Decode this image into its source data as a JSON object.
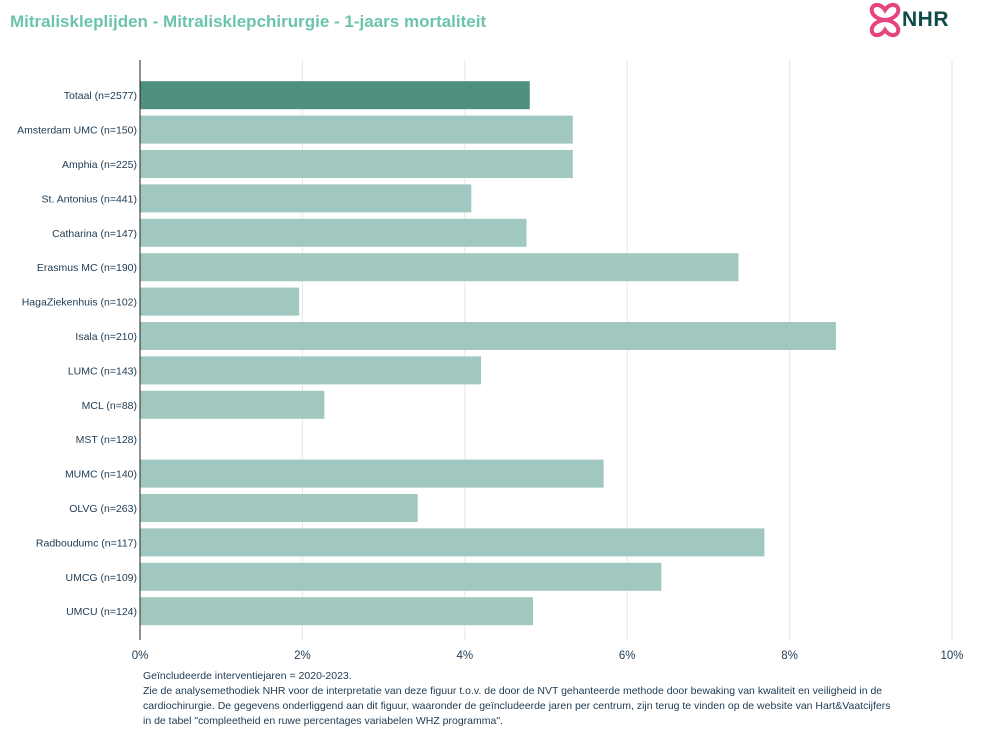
{
  "title": "Mitraliskleplijden - Mitralisklepchirurgie - 1-jaars mortaliteit",
  "logo": {
    "text": "NHR",
    "icon": "nhr-hearts-icon"
  },
  "chart_data": {
    "type": "bar",
    "orientation": "horizontal",
    "categories": [
      "Totaal (n=2577)",
      "Amsterdam UMC (n=150)",
      "Amphia (n=225)",
      "St. Antonius (n=441)",
      "Catharina (n=147)",
      "Erasmus MC (n=190)",
      "HagaZiekenhuis (n=102)",
      "Isala (n=210)",
      "LUMC (n=143)",
      "MCL (n=88)",
      "MST (n=128)",
      "MUMC (n=140)",
      "OLVG (n=263)",
      "Radboudumc (n=117)",
      "UMCG (n=109)",
      "UMCU (n=124)"
    ],
    "values": [
      4.8,
      5.33,
      5.33,
      4.08,
      4.76,
      7.37,
      1.96,
      8.57,
      4.2,
      2.27,
      0.0,
      5.71,
      3.42,
      7.69,
      6.42,
      4.84
    ],
    "highlight_index": 0,
    "xlim": [
      0,
      10
    ],
    "xticks": [
      "0%",
      "2%",
      "4%",
      "6%",
      "8%",
      "10%"
    ],
    "xtick_values": [
      0,
      2,
      4,
      6,
      8,
      10
    ],
    "grid": true,
    "colors": {
      "highlight": "#4e8f7f",
      "bar": "#a0c8c0",
      "grid": "#e6e6e6",
      "axis": "#222222",
      "label": "#1d3a52"
    }
  },
  "footnote": [
    "Geïncludeerde interventiejaren = 2020-2023.",
    "Zie de analysemethodiek NHR voor de interpretatie van deze figuur t.o.v. de door de NVT gehanteerde methode door bewaking van kwaliteit en veiligheid in de",
    "cardiochirurgie. De gegevens onderliggend aan dit figuur, waaronder de geïncludeerde jaren per centrum, zijn terug te vinden op de website van Hart&Vaatcijfers",
    "in de tabel \"compleetheid en ruwe percentages variabelen WHZ programma\"."
  ]
}
